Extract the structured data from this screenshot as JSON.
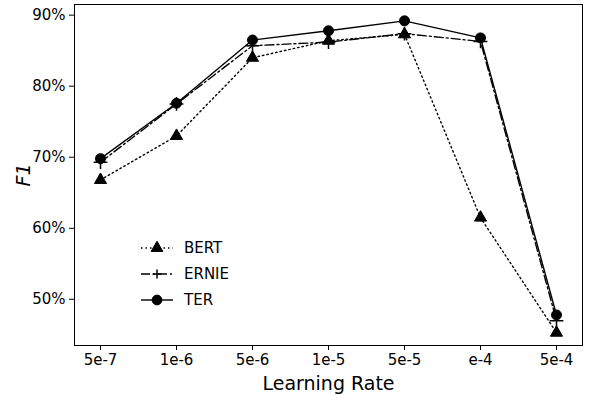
{
  "chart_data": {
    "type": "line",
    "x_label": "Learning Rate",
    "y_label": "F1",
    "categories": [
      "5e-7",
      "1e-6",
      "5e-6",
      "1e-5",
      "5e-5",
      "e-4",
      "5e-4"
    ],
    "series": [
      {
        "name": "BERT",
        "color": "#000000",
        "marker": "triangle",
        "line_style": "dotted",
        "values": [
          66.8,
          73.0,
          84.0,
          86.4,
          87.3,
          61.5,
          45.3
        ]
      },
      {
        "name": "ERNIE",
        "color": "#000000",
        "marker": "plus",
        "line_style": "dashdot",
        "values": [
          69.3,
          77.5,
          85.7,
          86.2,
          87.4,
          86.3,
          47.0
        ]
      },
      {
        "name": "TER",
        "color": "#000000",
        "marker": "circle",
        "line_style": "solid",
        "values": [
          69.8,
          77.6,
          86.5,
          87.8,
          89.2,
          86.8,
          47.8
        ]
      }
    ],
    "ylim": [
      43.5,
      91.5
    ],
    "yticks": [
      {
        "value": 50,
        "label": "50%"
      },
      {
        "value": 60,
        "label": "60%"
      },
      {
        "value": 70,
        "label": "70%"
      },
      {
        "value": 80,
        "label": "80%"
      },
      {
        "value": 90,
        "label": "90%"
      }
    ],
    "grid": false,
    "legend": "lower left"
  }
}
